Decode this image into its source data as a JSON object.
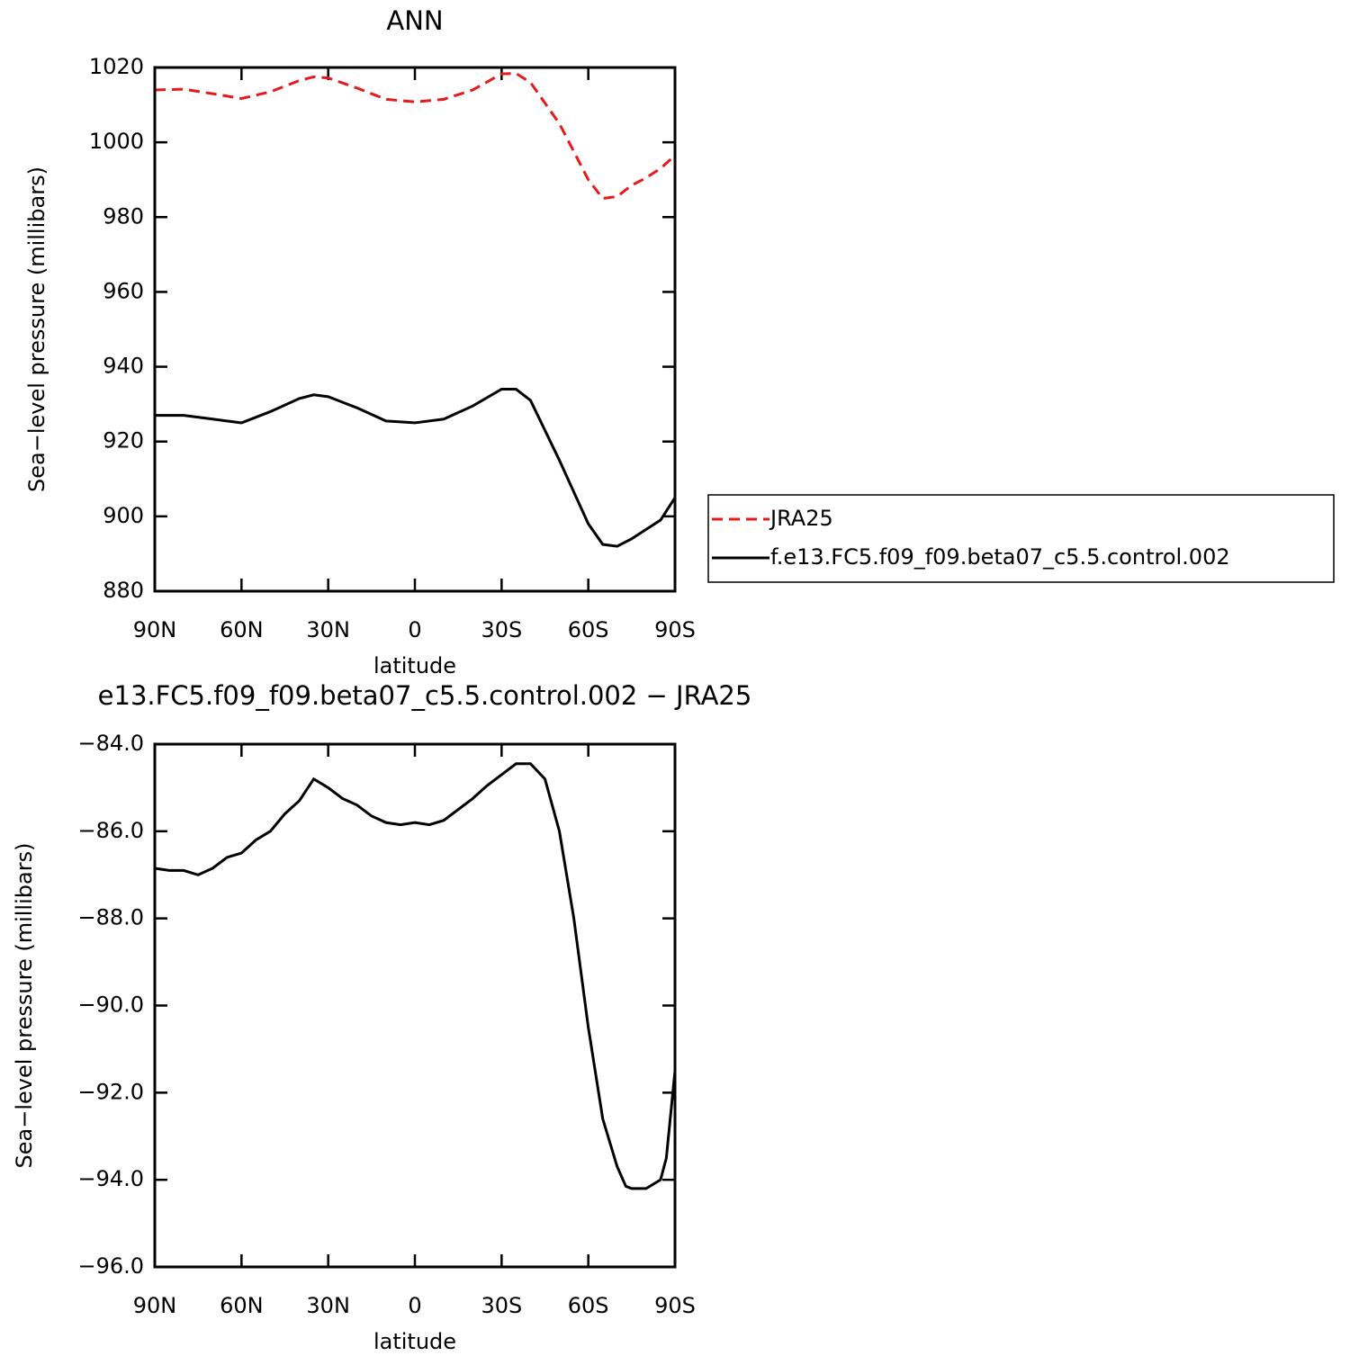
{
  "chart_data": [
    {
      "type": "line",
      "title": "ANN",
      "xlabel": "latitude",
      "ylabel": "Sea−level pressure (millibars)",
      "xlim": [
        90,
        -90
      ],
      "xticks": [
        {
          "value": 90,
          "label": "90N"
        },
        {
          "value": 60,
          "label": "60N"
        },
        {
          "value": 30,
          "label": "30N"
        },
        0,
        {
          "value": -30,
          "label": "30S"
        },
        {
          "value": -60,
          "label": "60S"
        },
        {
          "value": -90,
          "label": "90S"
        }
      ],
      "ylim": [
        880,
        1020
      ],
      "yticks": [
        880,
        900,
        920,
        940,
        960,
        980,
        1000,
        1020
      ],
      "x": [
        90,
        80,
        70,
        60,
        50,
        40,
        35,
        30,
        20,
        10,
        0,
        -10,
        -20,
        -30,
        -35,
        -40,
        -50,
        -60,
        -65,
        -70,
        -75,
        -80,
        -85,
        -90
      ],
      "series": [
        {
          "name": "JRA25",
          "color": "#e41a1c",
          "line_style": "dashed",
          "values": [
            1014,
            1014.2,
            1013,
            1011.7,
            1013.5,
            1016.5,
            1017.5,
            1017.2,
            1014.5,
            1011.5,
            1010.8,
            1011.5,
            1014,
            1018.3,
            1018.4,
            1016,
            1005,
            990,
            985,
            985.5,
            988.5,
            990.5,
            993,
            996.5
          ]
        },
        {
          "name": "f.e13.FC5.f09_f09.beta07_c5.5.control.002",
          "color": "#000000",
          "line_style": "solid",
          "values": [
            927,
            927,
            926,
            925,
            928,
            931.5,
            932.5,
            932,
            929,
            925.5,
            925,
            926,
            929.5,
            934,
            934,
            931,
            915,
            898,
            892.5,
            892,
            894,
            896.5,
            899,
            905
          ]
        }
      ],
      "legend": "outside-right"
    },
    {
      "type": "line",
      "title": "e13.FC5.f09_f09.beta07_c5.5.control.002 − JRA25",
      "xlabel": "latitude",
      "ylabel": "Sea−level pressure (millibars)",
      "xlim": [
        90,
        -90
      ],
      "xticks": [
        {
          "value": 90,
          "label": "90N"
        },
        {
          "value": 60,
          "label": "60N"
        },
        {
          "value": 30,
          "label": "30N"
        },
        0,
        {
          "value": -30,
          "label": "30S"
        },
        {
          "value": -60,
          "label": "60S"
        },
        {
          "value": -90,
          "label": "90S"
        }
      ],
      "ylim": [
        -96,
        -84
      ],
      "yticks": [
        {
          "value": -96,
          "label": "−96.0"
        },
        {
          "value": -94,
          "label": "−94.0"
        },
        {
          "value": -92,
          "label": "−92.0"
        },
        {
          "value": -90,
          "label": "−90.0"
        },
        {
          "value": -88,
          "label": "−88.0"
        },
        {
          "value": -86,
          "label": "−86.0"
        },
        {
          "value": -84,
          "label": "−84.0"
        }
      ],
      "x": [
        90,
        85,
        80,
        75,
        70,
        65,
        60,
        55,
        50,
        45,
        40,
        35,
        30,
        25,
        20,
        15,
        10,
        5,
        0,
        -5,
        -10,
        -15,
        -20,
        -25,
        -30,
        -35,
        -40,
        -45,
        -50,
        -55,
        -60,
        -65,
        -70,
        -73,
        -75,
        -80,
        -85,
        -87,
        -90
      ],
      "series": [
        {
          "color": "#000000",
          "line_style": "solid",
          "values": [
            -86.85,
            -86.9,
            -86.9,
            -87.0,
            -86.85,
            -86.6,
            -86.5,
            -86.2,
            -86.0,
            -85.6,
            -85.3,
            -84.8,
            -85.0,
            -85.25,
            -85.4,
            -85.65,
            -85.8,
            -85.85,
            -85.8,
            -85.85,
            -85.75,
            -85.5,
            -85.25,
            -84.95,
            -84.7,
            -84.45,
            -84.45,
            -84.8,
            -86.0,
            -88.0,
            -90.5,
            -92.6,
            -93.7,
            -94.15,
            -94.2,
            -94.2,
            -94.0,
            -93.5,
            -91.5
          ]
        }
      ]
    }
  ]
}
